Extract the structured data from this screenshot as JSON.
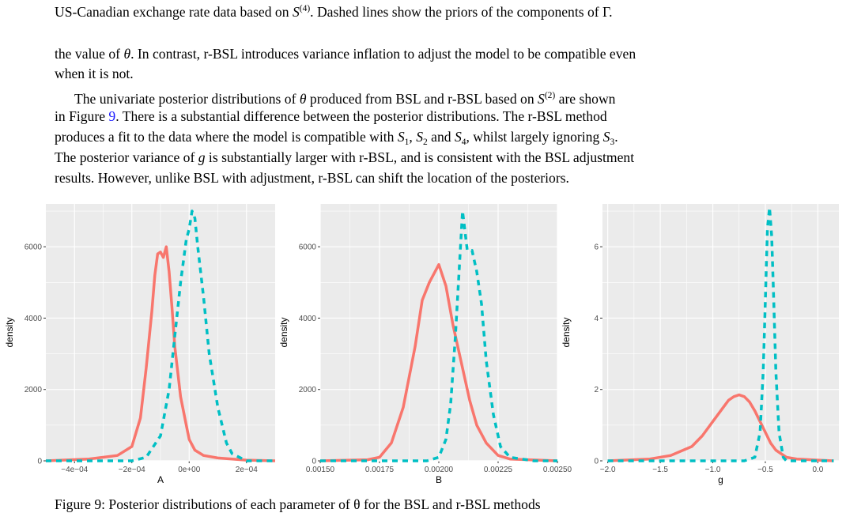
{
  "caption_top": {
    "prefix": "US-Canadian exchange rate data based on ",
    "s_symbol": "S",
    "s_sup": "(4)",
    "middle": ". Dashed lines show the priors of the components of ",
    "gamma": "Γ",
    "end": "."
  },
  "para1": {
    "l1_a": "the value of ",
    "theta": "θ",
    "l1_b": ". In contrast, r-BSL introduces variance inflation to adjust the model to be compatible even",
    "l2": "when it is not."
  },
  "para2": {
    "l1_a": "The univariate posterior distributions of ",
    "theta": "θ",
    "l1_b": " produced from BSL and r-BSL based on ",
    "s_symbol": "S",
    "s_sup": "(2)",
    "l1_c": " are shown",
    "l2_a": "in Figure ",
    "fig_ref": "9",
    "l2_b": ". There is a substantial difference between the posterior distributions. The r-BSL method",
    "l3_a": "produces a fit to the data where the model is compatible with ",
    "s1": "S",
    "s1_sub": "1",
    "comma1": ", ",
    "s2": "S",
    "s2_sub": "2",
    "and": " and ",
    "s4": "S",
    "s4_sub": "4",
    "l3_b": ", whilst largely ignoring ",
    "s3": "S",
    "s3_sub": "3",
    "l3_end": ".",
    "l4_a": "The posterior variance of ",
    "g": "g",
    "l4_b": " is substantially larger with r-BSL, and is consistent with the BSL adjustment",
    "l5": "results. However, unlike BSL with adjustment, r-BSL can shift the location of the posteriors."
  },
  "caption_bottom": {
    "l1": "Figure 9: Posterior distributions of each parameter of θ for the BSL and r-BSL methods"
  },
  "colors": {
    "solid": "#F8766D",
    "dashed": "#00BFC4",
    "panel": "#EBEBEB",
    "grid": "#ffffff"
  },
  "chart_data": [
    {
      "type": "line",
      "xlabel": "A",
      "ylabel": "density",
      "xlim": [
        -0.0005,
        0.0003
      ],
      "ylim": [
        0,
        7200
      ],
      "x_ticks": [
        -0.0004,
        -0.0002,
        0.0,
        0.0002
      ],
      "x_tick_labels": [
        "−4e−04",
        "−2e−04",
        "0e+00",
        "2e−04"
      ],
      "y_ticks": [
        0,
        2000,
        4000,
        6000
      ],
      "y_tick_labels": [
        "0",
        "2000",
        "4000",
        "6000"
      ],
      "series": [
        {
          "style": "solid",
          "x": [
            -0.0005,
            -0.00035,
            -0.0003,
            -0.00025,
            -0.0002,
            -0.00017,
            -0.00015,
            -0.00013,
            -0.00012,
            -0.00011,
            -0.0001,
            -9e-05,
            -8e-05,
            -7e-05,
            -6e-05,
            -5e-05,
            -3e-05,
            -1e-05,
            0.0,
            2e-05,
            5e-05,
            0.0001,
            0.0002,
            0.0003
          ],
          "y": [
            0,
            50,
            100,
            150,
            400,
            1200,
            2600,
            4200,
            5200,
            5800,
            5850,
            5700,
            6000,
            5300,
            4300,
            3200,
            1800,
            1000,
            600,
            300,
            150,
            80,
            20,
            0
          ]
        },
        {
          "style": "dashed",
          "x": [
            -0.0005,
            -0.0002,
            -0.00015,
            -0.0001,
            -7e-05,
            -5e-05,
            -3e-05,
            -1e-05,
            0.0,
            1e-05,
            2e-05,
            3e-05,
            5e-05,
            7e-05,
            0.0001,
            0.00013,
            0.00015,
            0.0002,
            0.0003
          ],
          "y": [
            0,
            0,
            100,
            700,
            2000,
            3500,
            5000,
            6200,
            6500,
            7000,
            6800,
            6000,
            4600,
            3000,
            1500,
            500,
            200,
            0,
            0
          ]
        }
      ]
    },
    {
      "type": "line",
      "xlabel": "B",
      "ylabel": "density",
      "xlim": [
        0.0015,
        0.0025
      ],
      "ylim": [
        0,
        7200
      ],
      "x_ticks": [
        0.0015,
        0.00175,
        0.002,
        0.00225,
        0.0025
      ],
      "x_tick_labels": [
        "0.00150",
        "0.00175",
        "0.00200",
        "0.00225",
        "0.00250"
      ],
      "y_ticks": [
        0,
        2000,
        4000,
        6000
      ],
      "y_tick_labels": [
        "0",
        "2000",
        "4000",
        "6000"
      ],
      "series": [
        {
          "style": "solid",
          "x": [
            0.0015,
            0.0017,
            0.00175,
            0.0018,
            0.00185,
            0.0019,
            0.00193,
            0.00196,
            0.002,
            0.00203,
            0.00206,
            0.0021,
            0.00213,
            0.00216,
            0.0022,
            0.00225,
            0.0023,
            0.0025
          ],
          "y": [
            0,
            30,
            100,
            500,
            1500,
            3200,
            4500,
            5000,
            5500,
            4900,
            3800,
            2600,
            1700,
            1000,
            500,
            150,
            50,
            0
          ]
        },
        {
          "style": "dashed",
          "x": [
            0.0015,
            0.00195,
            0.002,
            0.00203,
            0.00205,
            0.00207,
            0.0021,
            0.00212,
            0.00214,
            0.00216,
            0.00218,
            0.0022,
            0.00223,
            0.00226,
            0.0023,
            0.0024,
            0.0025
          ],
          "y": [
            0,
            0,
            100,
            600,
            1600,
            3500,
            7000,
            5900,
            5900,
            5300,
            4400,
            2800,
            1300,
            400,
            100,
            0,
            0
          ]
        }
      ]
    },
    {
      "type": "line",
      "xlabel": "g",
      "ylabel": "density",
      "xlim": [
        -2.05,
        0.2
      ],
      "ylim": [
        0,
        7.2
      ],
      "x_ticks": [
        -2.0,
        -1.5,
        -1.0,
        -0.5,
        0.0
      ],
      "x_tick_labels": [
        "−2.0",
        "−1.5",
        "−1.0",
        "−0.5",
        "0.0"
      ],
      "y_ticks": [
        0,
        2,
        4,
        6
      ],
      "y_tick_labels": [
        "0",
        "2",
        "4",
        "6"
      ],
      "series": [
        {
          "style": "solid",
          "x": [
            -2.0,
            -1.6,
            -1.4,
            -1.2,
            -1.1,
            -1.0,
            -0.9,
            -0.85,
            -0.8,
            -0.75,
            -0.7,
            -0.65,
            -0.6,
            -0.55,
            -0.5,
            -0.45,
            -0.4,
            -0.3,
            -0.2,
            0.0,
            0.15
          ],
          "y": [
            0,
            0.05,
            0.15,
            0.4,
            0.7,
            1.1,
            1.5,
            1.7,
            1.8,
            1.85,
            1.8,
            1.65,
            1.4,
            1.1,
            0.8,
            0.5,
            0.3,
            0.1,
            0.05,
            0.02,
            0.0
          ]
        },
        {
          "style": "dashed",
          "x": [
            -2.0,
            -0.7,
            -0.6,
            -0.55,
            -0.52,
            -0.5,
            -0.48,
            -0.46,
            -0.44,
            -0.42,
            -0.4,
            -0.37,
            -0.33,
            -0.3,
            0.15
          ],
          "y": [
            0,
            0,
            0.1,
            0.8,
            2.5,
            4.5,
            6.5,
            7.1,
            6.3,
            4.5,
            2.5,
            0.8,
            0.1,
            0.0,
            0.0
          ]
        }
      ]
    }
  ]
}
